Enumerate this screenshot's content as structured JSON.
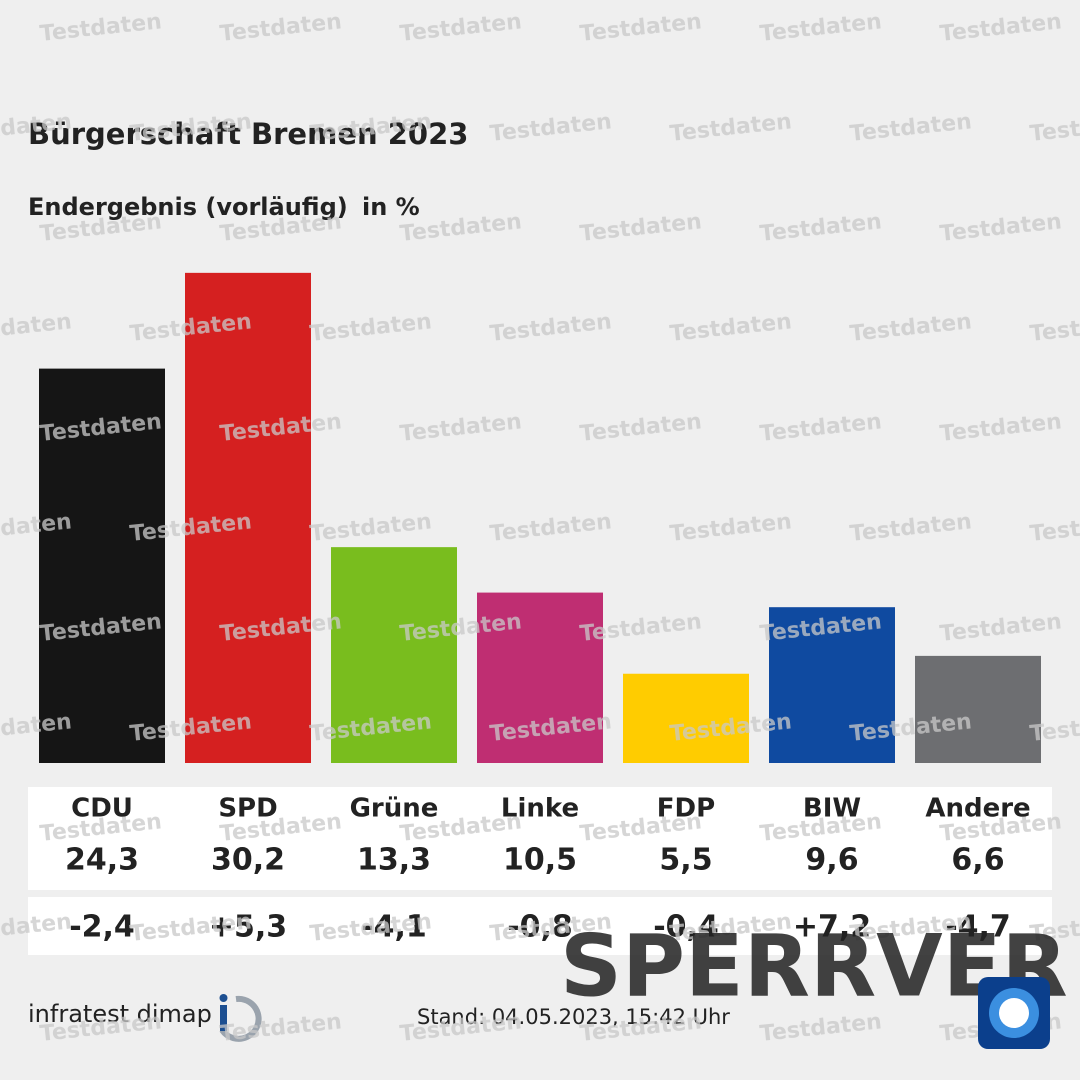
{
  "chart_data": {
    "type": "bar",
    "title": "Bürgerschaft Bremen 2023",
    "subtitle": "Endergebnis (vorläufig)",
    "unit": "in %",
    "categories": [
      "CDU",
      "SPD",
      "Grüne",
      "Linke",
      "FDP",
      "BIW",
      "Andere"
    ],
    "values": [
      24.3,
      30.2,
      13.3,
      10.5,
      5.5,
      9.6,
      6.6
    ],
    "value_labels": [
      "24,3",
      "30,2",
      "13,3",
      "10,5",
      "5,5",
      "9,6",
      "6,6"
    ],
    "changes": [
      -2.4,
      5.3,
      -4.1,
      -0.8,
      -0.4,
      7.2,
      -4.7
    ],
    "change_labels": [
      "-2,4",
      "+5,3",
      "-4,1",
      "-0,8",
      "-0,4",
      "+7,2",
      "-4,7"
    ],
    "colors": [
      "#151515",
      "#d52020",
      "#79bd1e",
      "#bf2e72",
      "#ffcc00",
      "#0f4aa0",
      "#6d6e71"
    ],
    "source": "infratest dimap",
    "stand": "Stand:  04.05.2023, 15:42 Uhr",
    "watermark": "Testdaten",
    "stamp": "SPERRVER"
  }
}
